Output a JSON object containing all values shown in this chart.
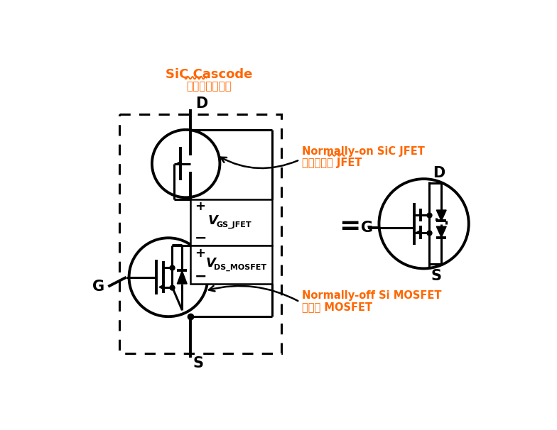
{
  "bg_color": "#ffffff",
  "black": "#000000",
  "orange": "#FF6600",
  "title1": "SiC Cascode",
  "title2": "碳化硬共源共栅",
  "label_D": "D",
  "label_S": "S",
  "label_G": "G",
  "label_jfet_en": "Normally-on SiC JFET",
  "label_jfet_cn": "常开碳化硬 JFET",
  "label_mosfet_en": "Normally-off Si MOSFET",
  "label_mosfet_cn": "常关硬 MOSFET",
  "label_vgs": "V",
  "label_vgs_sub": "GS_JFET",
  "label_vds": "V",
  "label_vds_sub": "DS_MOSFET",
  "label_D2": "D",
  "label_S2": "S",
  "label_G2": "G",
  "plus": "+",
  "minus": "−"
}
